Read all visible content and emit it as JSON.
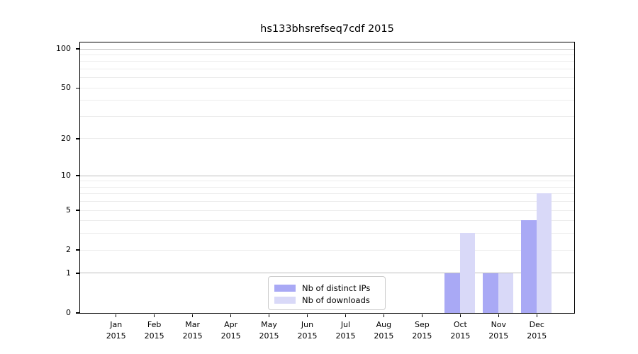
{
  "chart_data": {
    "type": "bar",
    "title": "hs133bhsrefseq7cdf 2015",
    "categories": [
      "Jan",
      "Feb",
      "Mar",
      "Apr",
      "May",
      "Jun",
      "Jul",
      "Aug",
      "Sep",
      "Oct",
      "Nov",
      "Dec"
    ],
    "category_year": "2015",
    "series": [
      {
        "name": "Nb of distinct IPs",
        "color": "#a9a9f5",
        "values": [
          0,
          0,
          0,
          0,
          0,
          0,
          0,
          0,
          0,
          1,
          1,
          4
        ]
      },
      {
        "name": "Nb of downloads",
        "color": "#d9d9f8",
        "values": [
          0,
          0,
          0,
          0,
          0,
          0,
          0,
          0,
          0,
          3,
          1,
          7
        ]
      }
    ],
    "yscale": "log1p",
    "ylim": [
      0,
      112
    ],
    "yticks": [
      0,
      1,
      2,
      5,
      10,
      20,
      50,
      100
    ],
    "gridlines_major": [
      1,
      10,
      100
    ],
    "gridlines_minor": [
      2,
      3,
      4,
      5,
      6,
      7,
      8,
      9,
      20,
      30,
      40,
      50,
      60,
      70,
      80,
      90
    ],
    "grid": true,
    "legend_position": "bottom-center",
    "colors": {
      "spine": "#000000",
      "grid_minor": "#ececec",
      "grid_major": "#bdbdbd",
      "background": "#ffffff",
      "text": "#000000"
    }
  }
}
